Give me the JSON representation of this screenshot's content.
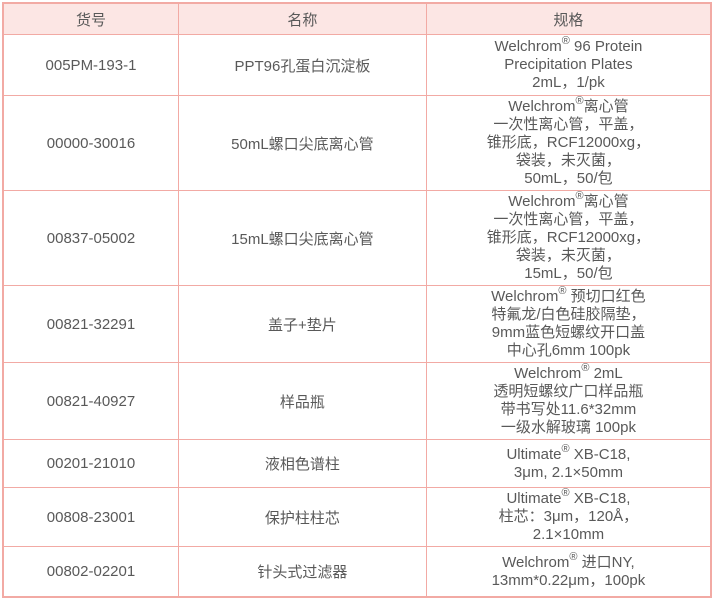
{
  "table": {
    "columns": [
      {
        "key": "code",
        "label": "货号"
      },
      {
        "key": "name",
        "label": "名称"
      },
      {
        "key": "spec",
        "label": "规格"
      }
    ],
    "rows": [
      {
        "code": "005PM-193-1",
        "name": "PPT96孔蛋白沉淀板",
        "spec": [
          "Welchrom® 96 Protein",
          "Precipitation Plates",
          "2mL，1/pk"
        ]
      },
      {
        "code": "00000-30016",
        "name": "50mL螺口尖底离心管",
        "spec": [
          "Welchrom®离心管",
          "一次性离心管，平盖，",
          "锥形底，RCF12000xg，",
          "袋装，未灭菌，",
          "50mL，50/包"
        ]
      },
      {
        "code": "00837-05002",
        "name": "15mL螺口尖底离心管",
        "spec": [
          "Welchrom®离心管",
          "一次性离心管，平盖，",
          "锥形底，RCF12000xg，",
          "袋装，未灭菌，",
          "15mL，50/包"
        ]
      },
      {
        "code": "00821-32291",
        "name": "盖子+垫片",
        "spec": [
          "Welchrom® 预切口红色",
          "特氟龙/白色硅胶隔垫，",
          "9mm蓝色短螺纹开口盖",
          "中心孔6mm 100pk"
        ]
      },
      {
        "code": "00821-40927",
        "name": "样品瓶",
        "spec": [
          "Welchrom® 2mL",
          "透明短螺纹广口样品瓶",
          "带书写处11.6*32mm",
          "一级水解玻璃 100pk"
        ]
      },
      {
        "code": "00201-21010",
        "name": "液相色谱柱",
        "spec": [
          "Ultimate® XB-C18,",
          "3μm, 2.1×50mm"
        ]
      },
      {
        "code": "00808-23001",
        "name": "保护柱柱芯",
        "spec": [
          "Ultimate® XB-C18,",
          "柱芯：3μm，120Å，",
          "2.1×10mm"
        ]
      },
      {
        "code": "00802-02201",
        "name": "针头式过滤器",
        "spec": [
          "Welchrom® 进口NY,",
          "13mm*0.22μm，100pk"
        ]
      }
    ],
    "colors": {
      "border": "#f2aaa4",
      "header_bg": "#fce6e4",
      "text": "#595959"
    }
  }
}
